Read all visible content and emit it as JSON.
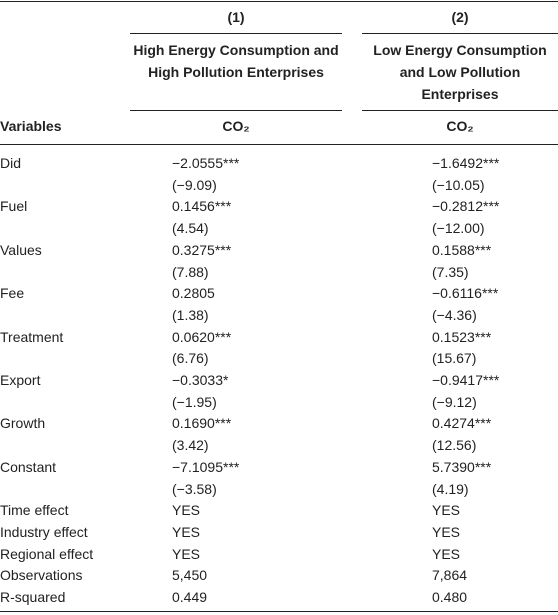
{
  "table": {
    "header": {
      "column_numbers": [
        "(1)",
        "(2)"
      ],
      "column_titles": [
        "High Energy Consumption and High Pollution Enterprises",
        "Low Energy Consumption and Low Pollution Enterprises"
      ],
      "stub": "Variables",
      "dependent": [
        "CO₂",
        "CO₂"
      ]
    },
    "rows": [
      {
        "label": "Did",
        "coef": [
          "−2.0555***",
          "−1.6492***"
        ],
        "t": [
          "(−9.09)",
          "(−10.05)"
        ]
      },
      {
        "label": "Fuel",
        "coef": [
          "0.1456***",
          "−0.2812***"
        ],
        "t": [
          "(4.54)",
          "(−12.00)"
        ]
      },
      {
        "label": "Values",
        "coef": [
          "0.3275***",
          "0.1588***"
        ],
        "t": [
          "(7.88)",
          "(7.35)"
        ]
      },
      {
        "label": "Fee",
        "coef": [
          "0.2805",
          "−0.6116***"
        ],
        "t": [
          "(1.38)",
          "(−4.36)"
        ]
      },
      {
        "label": "Treatment",
        "coef": [
          "0.0620***",
          "0.1523***"
        ],
        "t": [
          "(6.76)",
          "(15.67)"
        ]
      },
      {
        "label": "Export",
        "coef": [
          "−0.3033*",
          "−0.9417***"
        ],
        "t": [
          "(−1.95)",
          "(−9.12)"
        ]
      },
      {
        "label": "Growth",
        "coef": [
          "0.1690***",
          "0.4274***"
        ],
        "t": [
          "(3.42)",
          "(12.56)"
        ]
      },
      {
        "label": "Constant",
        "coef": [
          "−7.1095***",
          "5.7390***"
        ],
        "t": [
          "(−3.58)",
          "(4.19)"
        ]
      },
      {
        "label": "Time effect",
        "coef": [
          "YES",
          "YES"
        ]
      },
      {
        "label": "Industry effect",
        "coef": [
          "YES",
          "YES"
        ]
      },
      {
        "label": "Regional effect",
        "coef": [
          "YES",
          "YES"
        ]
      },
      {
        "label": "Observations",
        "coef": [
          "5,450",
          "7,864"
        ]
      },
      {
        "label": "R-squared",
        "coef": [
          "0.449",
          "0.480"
        ]
      }
    ]
  }
}
